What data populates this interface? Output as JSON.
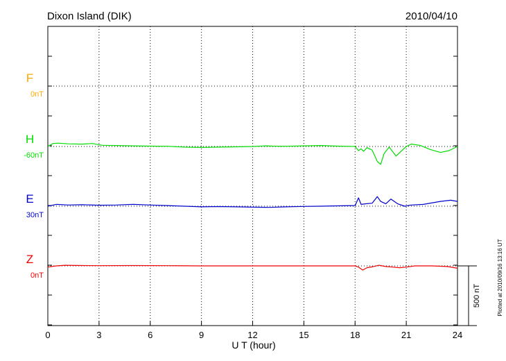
{
  "chart_data": {
    "type": "line",
    "title": "Dixon Island (DIK)",
    "date": "2010/04/10",
    "xlabel": "U T (hour)",
    "xlim": [
      0,
      24
    ],
    "xticks": [
      "0",
      "3",
      "6",
      "9",
      "12",
      "15",
      "18",
      "21",
      "24"
    ],
    "scale_label": "500 nT",
    "plotted_note": "Plotted at 2010/09/16 13:16 UT",
    "series": [
      {
        "name": "F",
        "baseline_label": "0nT",
        "color": "#FFA500",
        "x": [],
        "y": []
      },
      {
        "name": "H",
        "baseline_label": "-60nT",
        "color": "#00DD00",
        "x": [
          0,
          0.3,
          0.6,
          1.2,
          2.0,
          2.6,
          3.2,
          4.0,
          5.0,
          6.0,
          7.0,
          8.0,
          9.0,
          10.0,
          11.0,
          12.0,
          12.8,
          13.2,
          14.0,
          15.0,
          16.0,
          17.0,
          18.0,
          18.2,
          18.35,
          18.5,
          18.7,
          19.0,
          19.3,
          19.5,
          19.7,
          20.0,
          20.4,
          20.7,
          21.0,
          21.3,
          21.8,
          22.4,
          23.0,
          23.5,
          24.0
        ],
        "y": [
          0,
          25,
          28,
          22,
          20,
          25,
          10,
          8,
          5,
          3,
          2,
          -5,
          -8,
          -5,
          -3,
          0,
          5,
          3,
          2,
          5,
          8,
          3,
          0,
          -35,
          -20,
          -40,
          -10,
          -30,
          -125,
          -150,
          -60,
          -5,
          -80,
          -40,
          0,
          20,
          10,
          -25,
          -50,
          -35,
          0
        ]
      },
      {
        "name": "E",
        "baseline_label": "30nT",
        "color": "#0000CC",
        "x": [
          0,
          0.5,
          1.2,
          2.0,
          3.0,
          4.0,
          5.0,
          6.0,
          7.0,
          8.0,
          9.0,
          10.0,
          11.0,
          12.0,
          13.0,
          14.0,
          15.0,
          16.0,
          17.0,
          18.0,
          18.2,
          18.35,
          18.6,
          19.0,
          19.3,
          19.5,
          19.8,
          20.1,
          20.5,
          20.9,
          21.3,
          22.0,
          23.0,
          23.6,
          24.0
        ],
        "y": [
          0,
          15,
          10,
          12,
          8,
          10,
          15,
          10,
          5,
          0,
          -5,
          -3,
          -5,
          -8,
          -10,
          -5,
          -2,
          0,
          3,
          5,
          70,
          15,
          20,
          25,
          80,
          40,
          20,
          60,
          20,
          0,
          10,
          15,
          40,
          50,
          40
        ]
      },
      {
        "name": "Z",
        "baseline_label": "0nT",
        "color": "#EE0000",
        "x": [
          0,
          0.5,
          1.0,
          2.0,
          3.0,
          5.0,
          7.0,
          9.0,
          11.0,
          13.0,
          15.0,
          17.0,
          18.0,
          18.2,
          18.45,
          18.7,
          19.0,
          19.4,
          19.8,
          20.2,
          20.6,
          21.0,
          21.5,
          22.5,
          23.4,
          24.0
        ],
        "y": [
          -10,
          0,
          5,
          3,
          2,
          3,
          2,
          0,
          0,
          0,
          0,
          0,
          0,
          -10,
          -35,
          -15,
          -8,
          5,
          -5,
          -10,
          -15,
          -10,
          0,
          0,
          -5,
          -20
        ]
      }
    ]
  }
}
